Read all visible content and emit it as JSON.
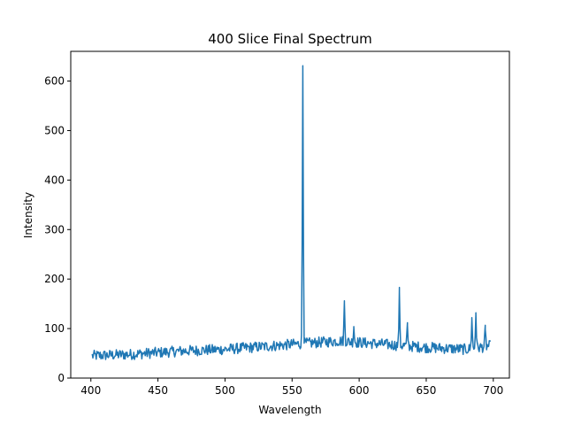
{
  "chart_data": {
    "type": "line",
    "title": "400 Slice Final Spectrum",
    "xlabel": "Wavelength",
    "ylabel": "Intensity",
    "xlim": [
      385,
      712
    ],
    "ylim": [
      0,
      660
    ],
    "xticks": [
      400,
      450,
      500,
      550,
      600,
      650,
      700
    ],
    "yticks": [
      0,
      100,
      200,
      300,
      400,
      500,
      600
    ],
    "grid": false,
    "legend": "none",
    "series": [
      {
        "color": "#1f77b4",
        "baseline": [
          [
            401,
            45
          ],
          [
            430,
            48
          ],
          [
            470,
            55
          ],
          [
            500,
            58
          ],
          [
            530,
            64
          ],
          [
            560,
            70
          ],
          [
            585,
            75
          ],
          [
            600,
            72
          ],
          [
            620,
            68
          ],
          [
            650,
            62
          ],
          [
            680,
            58
          ],
          [
            698,
            65
          ]
        ],
        "noise": 11,
        "peaks": [
          {
            "x": 558,
            "y": 631
          },
          {
            "x": 589,
            "y": 152
          },
          {
            "x": 596,
            "y": 104
          },
          {
            "x": 630,
            "y": 173
          },
          {
            "x": 636,
            "y": 106
          },
          {
            "x": 684,
            "y": 122
          },
          {
            "x": 687,
            "y": 132
          },
          {
            "x": 694,
            "y": 98
          }
        ]
      }
    ]
  }
}
